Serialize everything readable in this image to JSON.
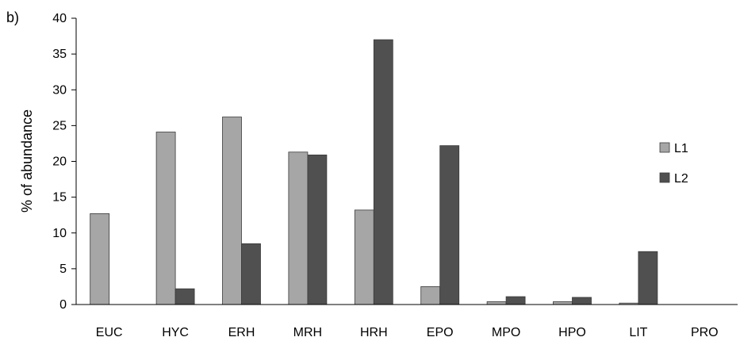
{
  "chart_data": {
    "type": "bar",
    "panel_label": "b)",
    "title": "",
    "xlabel": "",
    "ylabel": "% of abundance",
    "ylim": [
      0,
      40
    ],
    "yticks": [
      0,
      5,
      10,
      15,
      20,
      25,
      30,
      35,
      40
    ],
    "grid": false,
    "legend_position": "right",
    "categories": [
      "EUC",
      "HYC",
      "ERH",
      "MRH",
      "HRH",
      "EPO",
      "MPO",
      "HPO",
      "LIT",
      "PRO"
    ],
    "series": [
      {
        "name": "L1",
        "color": "#a6a6a6",
        "values": [
          12.7,
          24.1,
          26.2,
          21.3,
          13.2,
          2.5,
          0.4,
          0.4,
          0.2,
          0.0
        ]
      },
      {
        "name": "L2",
        "color": "#505050",
        "values": [
          0.0,
          2.2,
          8.5,
          20.9,
          37.0,
          22.2,
          1.1,
          1.0,
          7.4,
          0.0
        ]
      }
    ]
  }
}
